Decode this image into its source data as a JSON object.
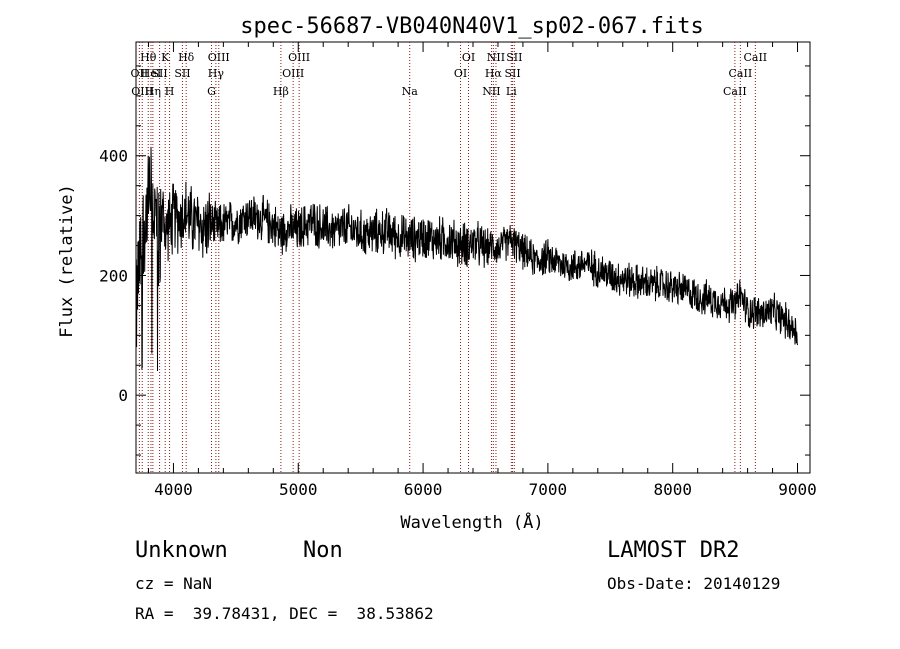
{
  "chart_data": {
    "type": "line",
    "title": "spec-56687-VB040N40V1_sp02-067.fits",
    "xlabel": "Wavelength (Å)",
    "ylabel": "Flux (relative)",
    "xlim": [
      3700,
      9100
    ],
    "ylim": [
      -130,
      590
    ],
    "x_ticks": [
      4000,
      5000,
      6000,
      7000,
      8000,
      9000
    ],
    "x_tick_labels": [
      "4000",
      "5000",
      "6000",
      "7000",
      "8000",
      "9000"
    ],
    "y_ticks": [
      0,
      200,
      400
    ],
    "y_tick_labels": [
      "0",
      "200",
      "400"
    ],
    "grid": false,
    "line_color": "#000000",
    "marker_color": "#8b1a1a",
    "spectrum": {
      "x": [
        3700,
        3720,
        3740,
        3760,
        3780,
        3800,
        3820,
        3840,
        3860,
        3880,
        3900,
        3920,
        3940,
        3960,
        3980,
        4000,
        4050,
        4100,
        4150,
        4200,
        4250,
        4300,
        4350,
        4400,
        4500,
        4600,
        4700,
        4800,
        4861,
        4900,
        5000,
        5100,
        5200,
        5300,
        5400,
        5500,
        5600,
        5700,
        5800,
        5900,
        6000,
        6100,
        6200,
        6300,
        6400,
        6500,
        6563,
        6600,
        6700,
        6800,
        6900,
        7000,
        7100,
        7200,
        7300,
        7400,
        7500,
        7600,
        7700,
        7800,
        7900,
        8000,
        8100,
        8200,
        8300,
        8400,
        8500,
        8542,
        8600,
        8662,
        8700,
        8800,
        8900,
        9000
      ],
      "y": [
        130,
        200,
        240,
        280,
        300,
        320,
        330,
        310,
        300,
        250,
        290,
        300,
        270,
        290,
        280,
        300,
        295,
        305,
        290,
        285,
        280,
        285,
        280,
        285,
        290,
        300,
        295,
        285,
        270,
        280,
        275,
        290,
        280,
        275,
        280,
        270,
        270,
        275,
        265,
        260,
        265,
        260,
        260,
        250,
        255,
        245,
        250,
        245,
        260,
        240,
        225,
        230,
        220,
        215,
        220,
        210,
        200,
        195,
        190,
        185,
        185,
        180,
        175,
        165,
        160,
        155,
        150,
        170,
        140,
        140,
        135,
        140,
        125,
        105
      ]
    },
    "lines": [
      {
        "wl": 3727,
        "label": "OII",
        "row": 2
      },
      {
        "wl": 3750,
        "label": "OIII",
        "row": 3
      },
      {
        "wl": 3798,
        "label": "Hθ",
        "row": 1
      },
      {
        "wl": 3820,
        "label": "HeI",
        "row": 2
      },
      {
        "wl": 3835,
        "label": "Hη",
        "row": 3
      },
      {
        "wl": 3889,
        "label": "SII",
        "row": 2
      },
      {
        "wl": 3934,
        "label": "K",
        "row": 1
      },
      {
        "wl": 3969,
        "label": "H",
        "row": 3
      },
      {
        "wl": 4072,
        "label": "SII",
        "row": 2
      },
      {
        "wl": 4102,
        "label": "Hδ",
        "row": 1
      },
      {
        "wl": 4305,
        "label": "G",
        "row": 3
      },
      {
        "wl": 4340,
        "label": "Hγ",
        "row": 2
      },
      {
        "wl": 4363,
        "label": "OIII",
        "row": 1
      },
      {
        "wl": 4861,
        "label": "Hβ",
        "row": 3
      },
      {
        "wl": 4959,
        "label": "OIII",
        "row": 2
      },
      {
        "wl": 5007,
        "label": "OIII",
        "row": 1
      },
      {
        "wl": 5893,
        "label": "Na",
        "row": 3
      },
      {
        "wl": 6300,
        "label": "OI",
        "row": 2
      },
      {
        "wl": 6364,
        "label": "OI",
        "row": 1
      },
      {
        "wl": 6548,
        "label": "NII",
        "row": 3
      },
      {
        "wl": 6563,
        "label": "Hα",
        "row": 2
      },
      {
        "wl": 6584,
        "label": "NII",
        "row": 1
      },
      {
        "wl": 6707,
        "label": "Li",
        "row": 3
      },
      {
        "wl": 6717,
        "label": "SII",
        "row": 2
      },
      {
        "wl": 6731,
        "label": "SII",
        "row": 1
      },
      {
        "wl": 8498,
        "label": "CaII",
        "row": 3
      },
      {
        "wl": 8542,
        "label": "CaII",
        "row": 2
      },
      {
        "wl": 8662,
        "label": "CaII",
        "row": 1
      }
    ]
  },
  "meta": {
    "class": "Unknown",
    "subclass": "Non",
    "survey": "LAMOST DR2",
    "cz": "cz = NaN",
    "obs_date": "Obs-Date: 20140129",
    "radec": "RA =  39.78431, DEC =  38.53862"
  }
}
